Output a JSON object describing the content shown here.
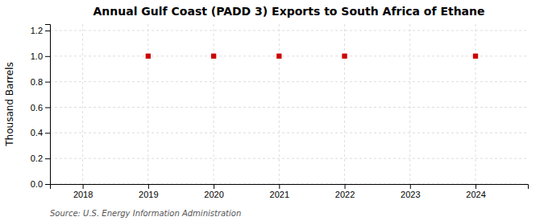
{
  "chart_data": {
    "type": "scatter",
    "title": "Annual Gulf Coast (PADD 3) Exports to South Africa of Ethane",
    "ylabel": "Thousand Barrels",
    "source": "Source: U.S. Energy Information Administration",
    "x": [
      2019,
      2020,
      2021,
      2022,
      2024
    ],
    "values": [
      1.0,
      1.0,
      1.0,
      1.0,
      1.0
    ],
    "xlim": [
      2017.5,
      2024.8
    ],
    "ylim": [
      0.0,
      1.25
    ],
    "xticks": [
      2018,
      2019,
      2020,
      2021,
      2022,
      2023,
      2024
    ],
    "yticks": [
      {
        "value": 0.0,
        "label": "0.0"
      },
      0.2,
      0.4,
      0.6,
      0.8,
      {
        "value": 1.0,
        "label": "1.0"
      },
      1.2
    ],
    "color": "#cc0000",
    "marker": "square",
    "grid": true
  }
}
